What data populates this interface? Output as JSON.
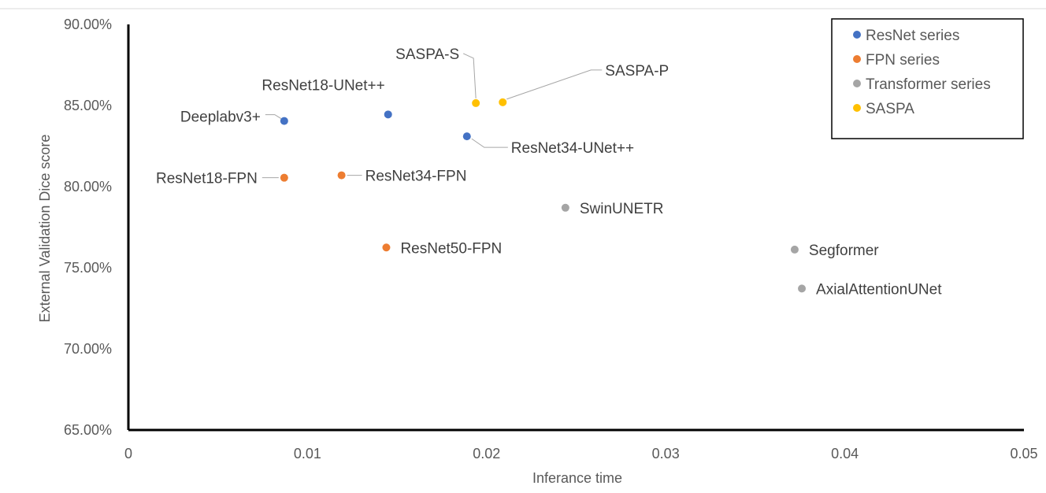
{
  "chart_data": {
    "type": "scatter",
    "title": "",
    "xlabel": "Inferance time",
    "ylabel": "External Validation Dice score",
    "xlim": [
      0,
      0.05
    ],
    "ylim": [
      0.65,
      0.9
    ],
    "x_ticks": [
      "0",
      "0.01",
      "0.02",
      "0.03",
      "0.04",
      "0.05"
    ],
    "y_ticks": [
      "65.00%",
      "70.00%",
      "75.00%",
      "80.00%",
      "85.00%",
      "90.00%"
    ],
    "grid": false,
    "legend_position": "top-right",
    "series": [
      {
        "name": "ResNet series",
        "color": "#4472C4",
        "points": [
          {
            "label": "Deeplabv3+",
            "x": 0.0087,
            "y": 0.8405
          },
          {
            "label": "ResNet18-UNet++",
            "x": 0.0145,
            "y": 0.8445
          },
          {
            "label": "ResNet34-UNet++",
            "x": 0.0189,
            "y": 0.831
          }
        ]
      },
      {
        "name": "FPN series",
        "color": "#ED7D31",
        "points": [
          {
            "label": "ResNet18-FPN",
            "x": 0.0087,
            "y": 0.8055
          },
          {
            "label": "ResNet34-FPN",
            "x": 0.0119,
            "y": 0.807
          },
          {
            "label": "ResNet50-FPN",
            "x": 0.0144,
            "y": 0.7625
          }
        ]
      },
      {
        "name": "Transformer series",
        "color": "#A5A5A5",
        "points": [
          {
            "label": "SwinUNETR",
            "x": 0.0244,
            "y": 0.787
          },
          {
            "label": "Segformer",
            "x": 0.0372,
            "y": 0.7612
          },
          {
            "label": "AxialAttentionUNet",
            "x": 0.0376,
            "y": 0.7372
          }
        ]
      },
      {
        "name": "SASPA",
        "color": "#FFC000",
        "points": [
          {
            "label": "SASPA-S",
            "x": 0.0194,
            "y": 0.8515
          },
          {
            "label": "SASPA-P",
            "x": 0.0209,
            "y": 0.852
          }
        ]
      }
    ]
  }
}
